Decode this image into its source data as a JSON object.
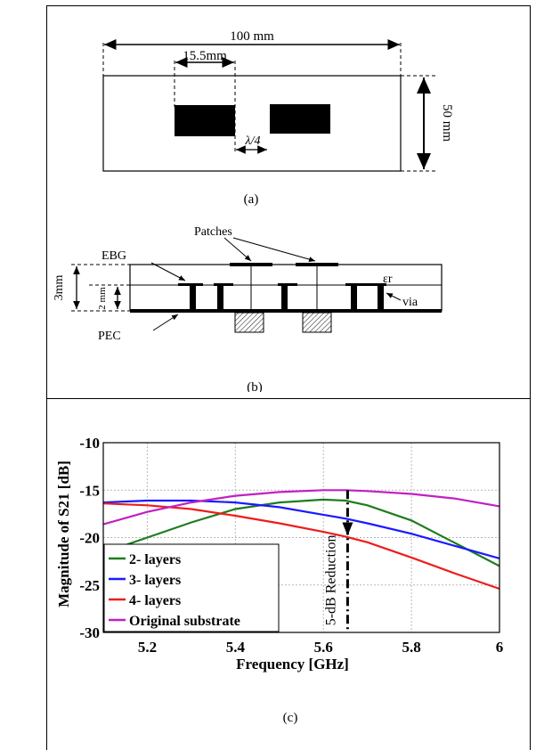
{
  "figure_a": {
    "width_label": "100 mm",
    "offset_label": "15.5mm",
    "height_label": "50 mm",
    "gap_label": "λ/4",
    "caption": "(a)"
  },
  "figure_b": {
    "patches_label": "Patches",
    "ebg_label": "EBG",
    "thickness_label": "3mm",
    "inner_thickness_label": "2 mm",
    "epsilon_label": "εr",
    "via_label": "via",
    "pec_label": "PEC",
    "caption": "(b)"
  },
  "figure_c": {
    "caption": "(c)",
    "annotation": "5-dB Reduction"
  },
  "chart_data": {
    "type": "line",
    "xlabel": "Frequency [GHz]",
    "ylabel": "Magnitude of S21 [dB]",
    "xlim": [
      5.1,
      6.0
    ],
    "ylim": [
      -30,
      -10
    ],
    "xticks": [
      5.2,
      5.4,
      5.6,
      5.8,
      6
    ],
    "yticks": [
      -10,
      -15,
      -20,
      -25,
      -30
    ],
    "grid": true,
    "legend_position": "lower-left",
    "series": [
      {
        "name": "2- layers",
        "color": "#1e7d1e",
        "x": [
          5.1,
          5.2,
          5.3,
          5.4,
          5.5,
          5.6,
          5.65,
          5.7,
          5.8,
          5.9,
          6.0
        ],
        "y": [
          -21.6,
          -20.0,
          -18.4,
          -17.0,
          -16.3,
          -16.0,
          -16.1,
          -16.6,
          -18.2,
          -20.6,
          -23.0
        ]
      },
      {
        "name": "3- layers",
        "color": "#1a1aff",
        "x": [
          5.1,
          5.2,
          5.3,
          5.4,
          5.5,
          5.6,
          5.65,
          5.7,
          5.8,
          5.9,
          6.0
        ],
        "y": [
          -16.3,
          -16.1,
          -16.1,
          -16.3,
          -16.8,
          -17.6,
          -18.0,
          -18.5,
          -19.6,
          -20.9,
          -22.2
        ]
      },
      {
        "name": "4- layers",
        "color": "#ee1c1c",
        "x": [
          5.1,
          5.2,
          5.3,
          5.4,
          5.5,
          5.6,
          5.65,
          5.7,
          5.8,
          5.9,
          6.0
        ],
        "y": [
          -16.4,
          -16.6,
          -17.0,
          -17.7,
          -18.5,
          -19.4,
          -19.9,
          -20.5,
          -22.1,
          -23.8,
          -25.4
        ]
      },
      {
        "name": "Original substrate",
        "color": "#c21fc2",
        "x": [
          5.1,
          5.2,
          5.3,
          5.4,
          5.5,
          5.6,
          5.65,
          5.7,
          5.8,
          5.9,
          6.0
        ],
        "y": [
          -18.6,
          -17.3,
          -16.3,
          -15.6,
          -15.2,
          -15.0,
          -15.0,
          -15.1,
          -15.4,
          -15.9,
          -16.7
        ]
      }
    ]
  }
}
